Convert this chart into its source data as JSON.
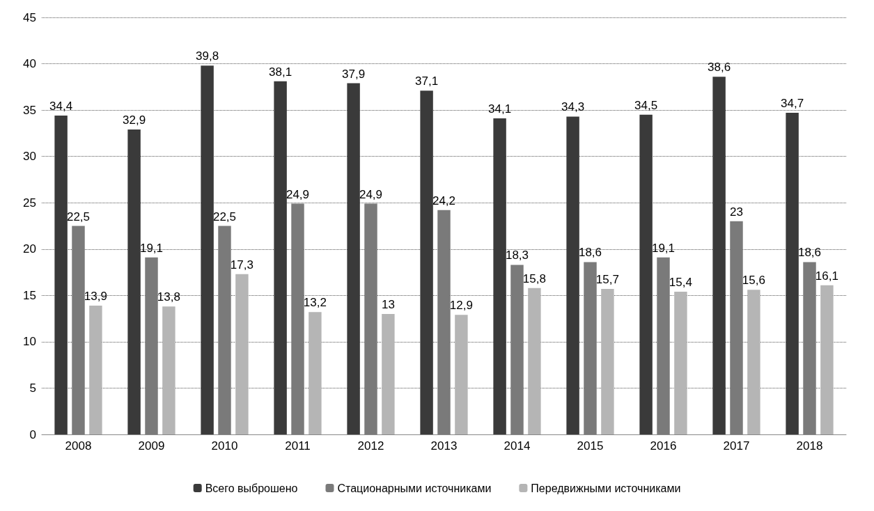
{
  "chart_data": {
    "type": "bar",
    "categories": [
      "2008",
      "2009",
      "2010",
      "2011",
      "2012",
      "2013",
      "2014",
      "2015",
      "2016",
      "2017",
      "2018"
    ],
    "series": [
      {
        "name": "Всего выброшено",
        "color": "#3a3a3a",
        "values": [
          34.4,
          32.9,
          39.8,
          38.1,
          37.9,
          37.1,
          34.1,
          34.3,
          34.5,
          38.6,
          34.7
        ],
        "value_labels": [
          "34,4",
          "32,9",
          "39,8",
          "38,1",
          "37,9",
          "37,1",
          "34,1",
          "34,3",
          "34,5",
          "38,6",
          "34,7"
        ]
      },
      {
        "name": "Стационарными источниками",
        "color": "#7a7a7a",
        "values": [
          22.5,
          19.1,
          22.5,
          24.9,
          24.9,
          24.2,
          18.3,
          18.6,
          19.1,
          23,
          18.6
        ],
        "value_labels": [
          "22,5",
          "19,1",
          "22,5",
          "24,9",
          "24,9",
          "24,2",
          "18,3",
          "18,6",
          "19,1",
          "23",
          "18,6"
        ]
      },
      {
        "name": "Передвижными источниками",
        "color": "#b5b5b5",
        "values": [
          13.9,
          13.8,
          17.3,
          13.2,
          13,
          12.9,
          15.8,
          15.7,
          15.4,
          15.6,
          16.1
        ],
        "value_labels": [
          "13,9",
          "13,8",
          "17,3",
          "13,2",
          "13",
          "12,9",
          "15,8",
          "15,7",
          "15,4",
          "15,6",
          "16,1"
        ]
      }
    ],
    "ylim": [
      0,
      45
    ],
    "yticks": [
      0,
      5,
      10,
      15,
      20,
      25,
      30,
      35,
      40,
      45
    ],
    "grid": "y",
    "legend": "bottom"
  }
}
